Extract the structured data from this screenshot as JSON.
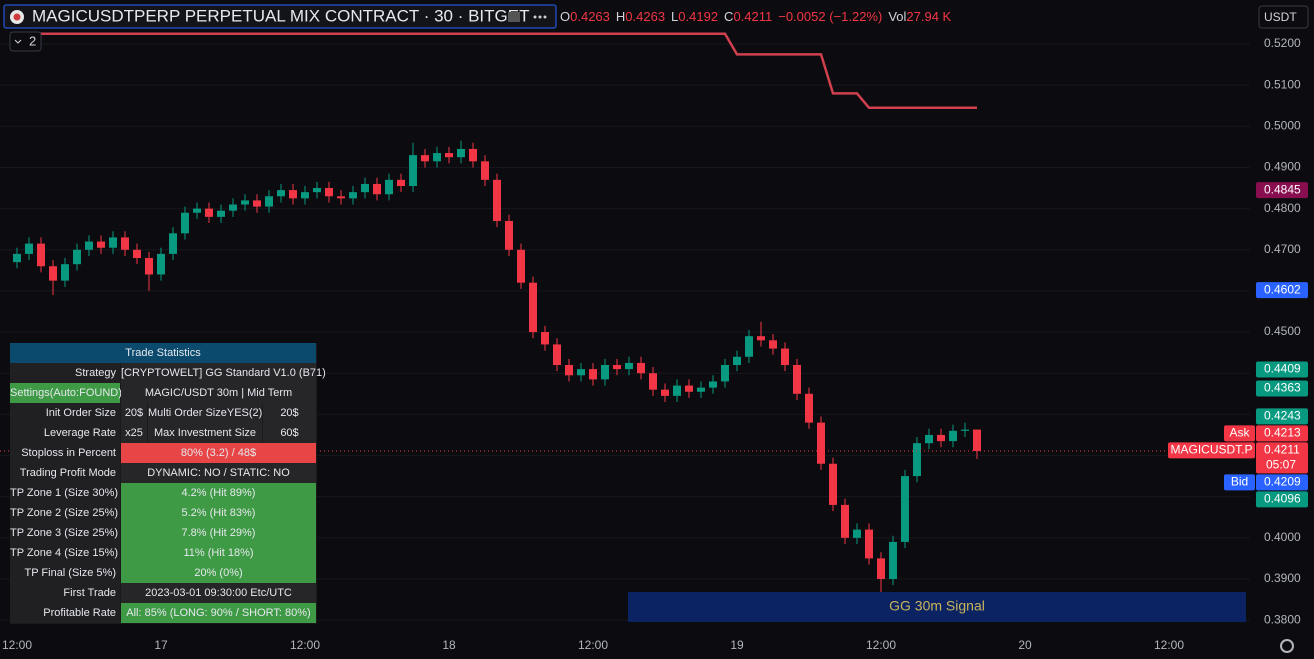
{
  "chart_data": {
    "type": "candlestick",
    "title": "MAGICUSDTPERP PERPETUAL MIX CONTRACT · 30 · BITGET",
    "ohlc_labels": [
      "O",
      "H",
      "L",
      "C"
    ],
    "change_label": "−0.0052 (−1.22%)",
    "volume_label": "Vol",
    "volume_value": "27.94 K",
    "indicator_count": "2",
    "currency": "USDT",
    "up_color": "#089981",
    "down_color": "#f23645",
    "grid": true,
    "categories": [
      "12:00",
      null,
      null,
      null,
      null,
      null,
      null,
      null,
      null,
      null,
      null,
      null,
      "17",
      null,
      null,
      null,
      null,
      null,
      null,
      null,
      null,
      null,
      null,
      null,
      "12:00",
      null,
      null,
      null,
      null,
      null,
      null,
      null,
      null,
      null,
      null,
      null,
      "18",
      null,
      null,
      null,
      null,
      null,
      null,
      null,
      null,
      null,
      null,
      null,
      "12:00",
      null,
      null,
      null,
      null,
      null,
      null,
      null,
      null,
      null,
      null,
      null,
      "19",
      null,
      null,
      null,
      null,
      null,
      null,
      null,
      null,
      null,
      null,
      null,
      "12:00",
      null,
      null,
      null,
      null,
      null,
      null,
      null,
      null,
      null,
      null,
      null,
      "20",
      null,
      null,
      null,
      null,
      null,
      null,
      null,
      null,
      null,
      null,
      null,
      "12:00"
    ],
    "open": [
      0.467,
      0.469,
      0.4715,
      0.466,
      0.4625,
      0.4665,
      0.47,
      0.472,
      0.4705,
      0.473,
      0.47,
      0.468,
      0.464,
      0.469,
      0.474,
      0.479,
      0.48,
      0.478,
      0.4795,
      0.481,
      0.482,
      0.4805,
      0.483,
      0.4845,
      0.4825,
      0.484,
      0.485,
      0.483,
      0.4825,
      0.484,
      0.486,
      0.4835,
      0.487,
      0.4855,
      0.493,
      0.4915,
      0.4935,
      0.4925,
      0.4945,
      0.4915,
      0.487,
      0.477,
      0.47,
      0.462,
      0.45,
      0.447,
      0.442,
      0.4395,
      0.441,
      0.4385,
      0.442,
      0.441,
      0.4425,
      0.44,
      0.436,
      0.4345,
      0.437,
      0.4355,
      0.4365,
      0.438,
      0.442,
      0.444,
      0.449,
      0.448,
      0.446,
      0.442,
      0.435,
      0.428,
      0.418,
      0.408,
      0.4,
      0.402,
      0.395,
      0.39,
      0.399,
      0.415,
      0.423,
      0.425,
      0.4235,
      0.426,
      0.4263,
      null,
      null,
      null,
      null,
      null,
      null,
      null,
      null,
      null,
      null,
      null,
      null,
      null,
      null,
      null,
      null
    ],
    "high": [
      0.4705,
      0.473,
      0.473,
      0.4675,
      0.468,
      0.4715,
      0.4735,
      0.4735,
      0.4745,
      0.4745,
      0.4715,
      0.4695,
      0.4705,
      0.4755,
      0.4805,
      0.4815,
      0.4815,
      0.481,
      0.4825,
      0.4835,
      0.4835,
      0.4845,
      0.486,
      0.486,
      0.4855,
      0.4865,
      0.4865,
      0.4845,
      0.4855,
      0.4875,
      0.4875,
      0.4885,
      0.4885,
      0.496,
      0.4945,
      0.495,
      0.495,
      0.4965,
      0.496,
      0.493,
      0.4885,
      0.4785,
      0.4715,
      0.4635,
      0.4515,
      0.4485,
      0.4435,
      0.4425,
      0.4425,
      0.4435,
      0.4435,
      0.444,
      0.444,
      0.4415,
      0.4375,
      0.4385,
      0.4385,
      0.438,
      0.4395,
      0.4435,
      0.4455,
      0.4505,
      0.4525,
      0.4495,
      0.4475,
      0.4435,
      0.4365,
      0.4295,
      0.4195,
      0.4095,
      0.4035,
      0.4035,
      0.3965,
      0.4005,
      0.4165,
      0.4245,
      0.4265,
      0.4265,
      0.4275,
      0.428,
      0.4263,
      null,
      null,
      null,
      null,
      null,
      null,
      null,
      null,
      null,
      null,
      null,
      null,
      null,
      null,
      null,
      null
    ],
    "low": [
      0.4655,
      0.4675,
      0.4645,
      0.459,
      0.461,
      0.465,
      0.4685,
      0.469,
      0.469,
      0.4685,
      0.4665,
      0.46,
      0.4625,
      0.4675,
      0.4725,
      0.4775,
      0.4765,
      0.4765,
      0.478,
      0.4795,
      0.479,
      0.479,
      0.4815,
      0.481,
      0.481,
      0.4825,
      0.4815,
      0.481,
      0.481,
      0.4825,
      0.482,
      0.482,
      0.484,
      0.484,
      0.49,
      0.49,
      0.491,
      0.491,
      0.49,
      0.4855,
      0.4755,
      0.4685,
      0.4605,
      0.4485,
      0.4455,
      0.4405,
      0.438,
      0.438,
      0.437,
      0.437,
      0.4395,
      0.4395,
      0.4385,
      0.4345,
      0.433,
      0.433,
      0.434,
      0.434,
      0.435,
      0.4365,
      0.4405,
      0.4425,
      0.4465,
      0.4445,
      0.4405,
      0.4335,
      0.4265,
      0.4165,
      0.4065,
      0.3985,
      0.3985,
      0.3935,
      0.3855,
      0.3885,
      0.3975,
      0.4135,
      0.4215,
      0.422,
      0.422,
      0.4245,
      0.4192,
      null,
      null,
      null,
      null,
      null,
      null,
      null,
      null,
      null,
      null,
      null,
      null,
      null,
      null,
      null,
      null
    ],
    "close": [
      0.469,
      0.4715,
      0.466,
      0.4625,
      0.4665,
      0.47,
      0.472,
      0.4705,
      0.473,
      0.47,
      0.468,
      0.464,
      0.469,
      0.474,
      0.479,
      0.48,
      0.478,
      0.4795,
      0.481,
      0.482,
      0.4805,
      0.483,
      0.4845,
      0.4825,
      0.484,
      0.485,
      0.483,
      0.4825,
      0.484,
      0.486,
      0.4835,
      0.487,
      0.4855,
      0.493,
      0.4915,
      0.4935,
      0.4925,
      0.4945,
      0.4915,
      0.487,
      0.477,
      0.47,
      0.462,
      0.45,
      0.447,
      0.442,
      0.4395,
      0.441,
      0.4385,
      0.442,
      0.441,
      0.4425,
      0.44,
      0.436,
      0.4345,
      0.437,
      0.4355,
      0.4365,
      0.438,
      0.442,
      0.444,
      0.449,
      0.448,
      0.446,
      0.442,
      0.435,
      0.428,
      0.418,
      0.408,
      0.4,
      0.402,
      0.395,
      0.39,
      0.399,
      0.415,
      0.423,
      0.425,
      0.4235,
      0.426,
      0.4263,
      0.4211,
      null,
      null,
      null,
      null,
      null,
      null,
      null,
      null,
      null,
      null,
      null,
      null,
      null,
      null,
      null,
      null
    ],
    "line_overlay": {
      "color": "#d0404e",
      "values": [
        0.5225,
        0.5225,
        0.5225,
        0.5225,
        0.5225,
        0.5225,
        0.5225,
        0.5225,
        0.5225,
        0.5225,
        0.5225,
        0.5225,
        0.5225,
        0.5225,
        0.5225,
        0.5225,
        0.5225,
        0.5225,
        0.5225,
        0.5225,
        0.5225,
        0.5225,
        0.5225,
        0.5225,
        0.5225,
        0.5225,
        0.5225,
        0.5225,
        0.5225,
        0.5225,
        0.5225,
        0.5225,
        0.5225,
        0.5225,
        0.5225,
        0.5225,
        0.5225,
        0.5225,
        0.5225,
        0.5225,
        0.5225,
        0.5225,
        0.5225,
        0.5225,
        0.5225,
        0.5225,
        0.5225,
        0.5225,
        0.5225,
        0.5225,
        0.5225,
        0.5225,
        0.5225,
        0.5225,
        0.5225,
        0.5225,
        0.5225,
        0.5225,
        0.5225,
        0.5225,
        0.5175,
        0.5175,
        0.5175,
        0.5175,
        0.5175,
        0.5175,
        0.5175,
        0.5175,
        0.508,
        0.508,
        0.508,
        0.5045,
        0.5045,
        0.5045,
        0.5045,
        0.5045,
        0.5045,
        0.5045,
        0.5045,
        0.5045,
        0.5045,
        null,
        null,
        null,
        null,
        null,
        null,
        null,
        null,
        null,
        null,
        null,
        null,
        null,
        null,
        null,
        null
      ]
    },
    "ylim": [
      0.3776,
      0.5307
    ],
    "yticks": [
      {
        "value": 0.38,
        "label": "0.3800"
      },
      {
        "value": 0.39,
        "label": "0.3900"
      },
      {
        "value": 0.4,
        "label": "0.4000"
      },
      {
        "value": 0.41,
        "label": "0.4100"
      },
      {
        "value": 0.42,
        "label": "0.4200"
      },
      {
        "value": 0.43,
        "label": "0.4300"
      },
      {
        "value": 0.44,
        "label": "0.4400"
      },
      {
        "value": 0.45,
        "label": "0.4500"
      },
      {
        "value": 0.46,
        "label": "0.4600"
      },
      {
        "value": 0.47,
        "label": "0.4700"
      },
      {
        "value": 0.48,
        "label": "0.4800"
      },
      {
        "value": 0.49,
        "label": "0.4900"
      },
      {
        "value": 0.5,
        "label": "0.5000"
      },
      {
        "value": 0.51,
        "label": "0.5100"
      },
      {
        "value": 0.52,
        "label": "0.5200"
      }
    ],
    "price_labels": [
      {
        "value": 0.4845,
        "color": "#880e4f"
      },
      {
        "value": 0.4602,
        "color": "#2962ff"
      },
      {
        "value": 0.4409,
        "color": "#089981"
      },
      {
        "value": 0.4363,
        "color": "#089981"
      },
      {
        "value": 0.4243,
        "color": "#089981"
      },
      {
        "value": 0.4213,
        "color": "#f23645",
        "name": "Ask"
      },
      {
        "value": 0.4211,
        "color": "#f23645",
        "name": "MAGICUSDT.P",
        "countdown": "05:07"
      },
      {
        "value": 0.4209,
        "color": "#2962ff",
        "name": "Bid"
      },
      {
        "value": 0.4096,
        "color": "#089981"
      }
    ],
    "signal_label": "GG 30m Signal"
  },
  "stats_table": {
    "title": "Trade Statistics",
    "rows": [
      [
        "Strategy",
        "[CRYPTOWELT] GG Standard V1.0 (B71)"
      ],
      [
        "Settings(Auto:FOUND)",
        "MAGIC/USDT 30m | Mid Term"
      ],
      [
        "Init Order Size",
        "20$",
        "Multi Order SizeYES(2)",
        "20$"
      ],
      [
        "Leverage Rate",
        "x25",
        "Max Investment Size",
        "60$"
      ],
      [
        "Stoploss in Percent",
        "80% (3.2) / 48$"
      ],
      [
        "Trading Profit Mode",
        "DYNAMIC: NO / STATIC: NO"
      ],
      [
        "TP Zone 1 (Size 30%)",
        "4.2% (Hit 89%)"
      ],
      [
        "TP Zone 2 (Size 25%)",
        "5.2% (Hit 83%)"
      ],
      [
        "TP Zone 3 (Size 25%)",
        "7.8% (Hit 29%)"
      ],
      [
        "TP Zone 4 (Size 15%)",
        "11% (Hit 18%)"
      ],
      [
        "TP Final (Size 5%)",
        "20% (0%)"
      ],
      [
        "First Trade",
        "2023-03-01 09:30:00 Etc/UTC"
      ],
      [
        "Profitable Rate",
        "All: 85% (LONG: 90% / SHORT: 80%)"
      ]
    ]
  }
}
